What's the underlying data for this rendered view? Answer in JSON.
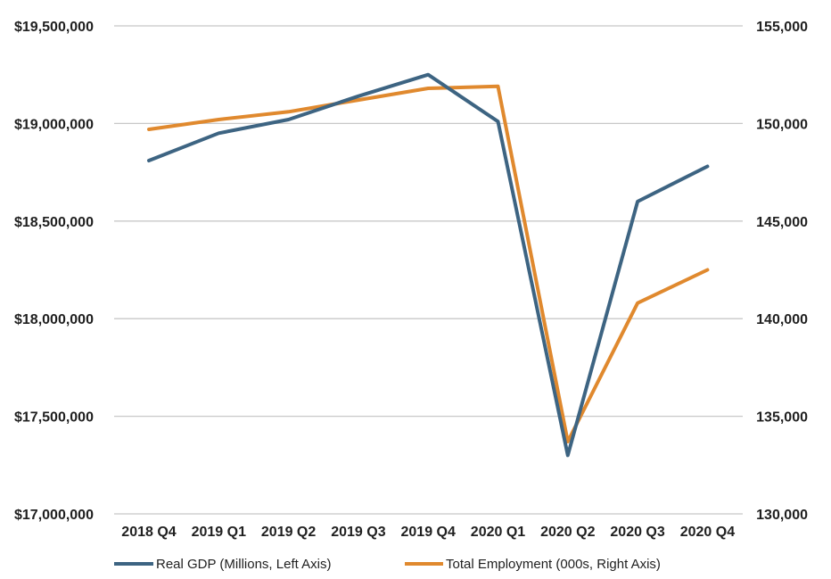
{
  "chart_data": {
    "type": "line",
    "categories": [
      "2018 Q4",
      "2019 Q1",
      "2019 Q2",
      "2019 Q3",
      "2019 Q4",
      "2020 Q1",
      "2020 Q2",
      "2020 Q3",
      "2020 Q4"
    ],
    "left_axis": {
      "ylim": [
        17000000,
        19500000
      ],
      "ticks": [
        17000000,
        17500000,
        18000000,
        18500000,
        19000000,
        19500000
      ],
      "tick_labels": [
        "$17,000,000",
        "$17,500,000",
        "$18,000,000",
        "$18,500,000",
        "$19,000,000",
        "$19,500,000"
      ]
    },
    "right_axis": {
      "ylim": [
        130000,
        155000
      ],
      "ticks": [
        130000,
        135000,
        140000,
        145000,
        150000,
        155000
      ],
      "tick_labels": [
        "130,000",
        "135,000",
        "140,000",
        "145,000",
        "150,000",
        "155,000"
      ]
    },
    "series": [
      {
        "name": "Real GDP (Millions, Left Axis)",
        "axis": "left",
        "color": "#3d6482",
        "values": [
          18810000,
          18950000,
          19020000,
          19140000,
          19250000,
          19010000,
          17300000,
          18600000,
          18780000
        ]
      },
      {
        "name": "Total Employment (000s, Right Axis)",
        "axis": "right",
        "color": "#e0892e",
        "values": [
          149700,
          150200,
          150600,
          151200,
          151800,
          151900,
          133700,
          140800,
          142500
        ]
      }
    ],
    "grid": true,
    "legend_position": "bottom"
  }
}
